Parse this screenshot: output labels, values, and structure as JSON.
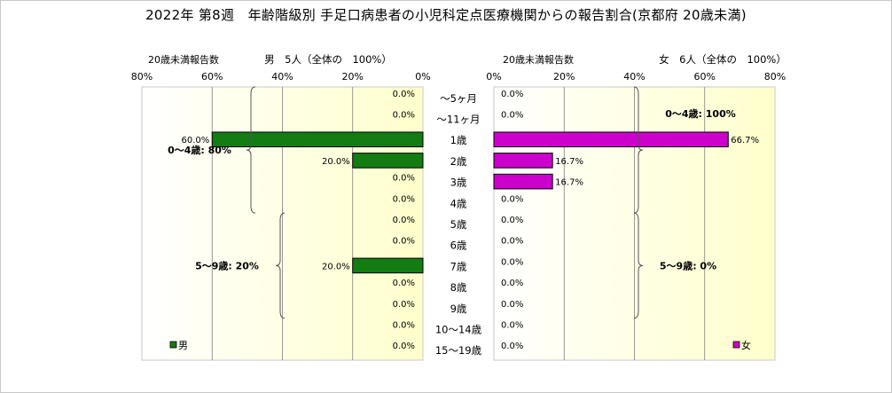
{
  "title": "2022年 第8週　年齢階級別 手足口病患者の小児科定点医療機関からの報告割合(京都府 20歳未満)",
  "colors": {
    "male_bar": "#137c13",
    "female_bar": "#cc00cc",
    "plot_bg_left": "#ffffff",
    "plot_bg_right": "#ffffcc",
    "frame": "#c8c8c8",
    "grid": "#808080"
  },
  "chart_data": [
    {
      "type": "bar",
      "orientation": "horizontal",
      "direction": "right-to-left",
      "header_label": "20歳未満報告数",
      "header_title": "男　5人（全体の　100%）",
      "legend_label": "男",
      "legend_position": "bottom-left",
      "xlim": [
        0,
        80
      ],
      "x_ticks": [
        80,
        60,
        40,
        20,
        0
      ],
      "x_tick_labels": [
        "80%",
        "60%",
        "40%",
        "20%",
        "0%"
      ],
      "grid": true,
      "categories": [
        "～5ヶ月",
        "～11ヶ月",
        "1歳",
        "2歳",
        "3歳",
        "4歳",
        "5歳",
        "6歳",
        "7歳",
        "8歳",
        "9歳",
        "10～14歳",
        "15～19歳"
      ],
      "values": [
        0.0,
        0.0,
        60.0,
        20.0,
        0.0,
        0.0,
        0.0,
        0.0,
        20.0,
        0.0,
        0.0,
        0.0,
        0.0
      ],
      "value_labels": [
        "0.0%",
        "0.0%",
        "60.0%",
        "20.0%",
        "0.0%",
        "0.0%",
        "0.0%",
        "0.0%",
        "20.0%",
        "0.0%",
        "0.0%",
        "0.0%",
        "0.0%"
      ],
      "annotations": [
        {
          "text": "0～4歳: 80%",
          "from_category": "～5ヶ月",
          "to_category": "4歳"
        },
        {
          "text": "5～9歳: 20%",
          "from_category": "5歳",
          "to_category": "9歳"
        }
      ]
    },
    {
      "type": "bar",
      "orientation": "horizontal",
      "direction": "left-to-right",
      "header_label": "20歳未満報告数",
      "header_title": "女　6人（全体の　100%）",
      "legend_label": "女",
      "legend_position": "bottom-right",
      "xlim": [
        0,
        80
      ],
      "x_ticks": [
        0,
        20,
        40,
        60,
        80
      ],
      "x_tick_labels": [
        "0%",
        "20%",
        "40%",
        "60%",
        "80%"
      ],
      "grid": true,
      "categories": [
        "～5ヶ月",
        "～11ヶ月",
        "1歳",
        "2歳",
        "3歳",
        "4歳",
        "5歳",
        "6歳",
        "7歳",
        "8歳",
        "9歳",
        "10～14歳",
        "15～19歳"
      ],
      "values": [
        0.0,
        0.0,
        66.7,
        16.7,
        16.7,
        0.0,
        0.0,
        0.0,
        0.0,
        0.0,
        0.0,
        0.0,
        0.0
      ],
      "value_labels": [
        "0.0%",
        "0.0%",
        "66.7%",
        "16.7%",
        "16.7%",
        "0.0%",
        "0.0%",
        "0.0%",
        "0.0%",
        "0.0%",
        "0.0%",
        "0.0%",
        "0.0%"
      ],
      "annotations": [
        {
          "text": "0～4歳: 100%",
          "from_category": "～5ヶ月",
          "to_category": "4歳"
        },
        {
          "text": "5～9歳: 0%",
          "from_category": "5歳",
          "to_category": "9歳"
        }
      ]
    }
  ]
}
